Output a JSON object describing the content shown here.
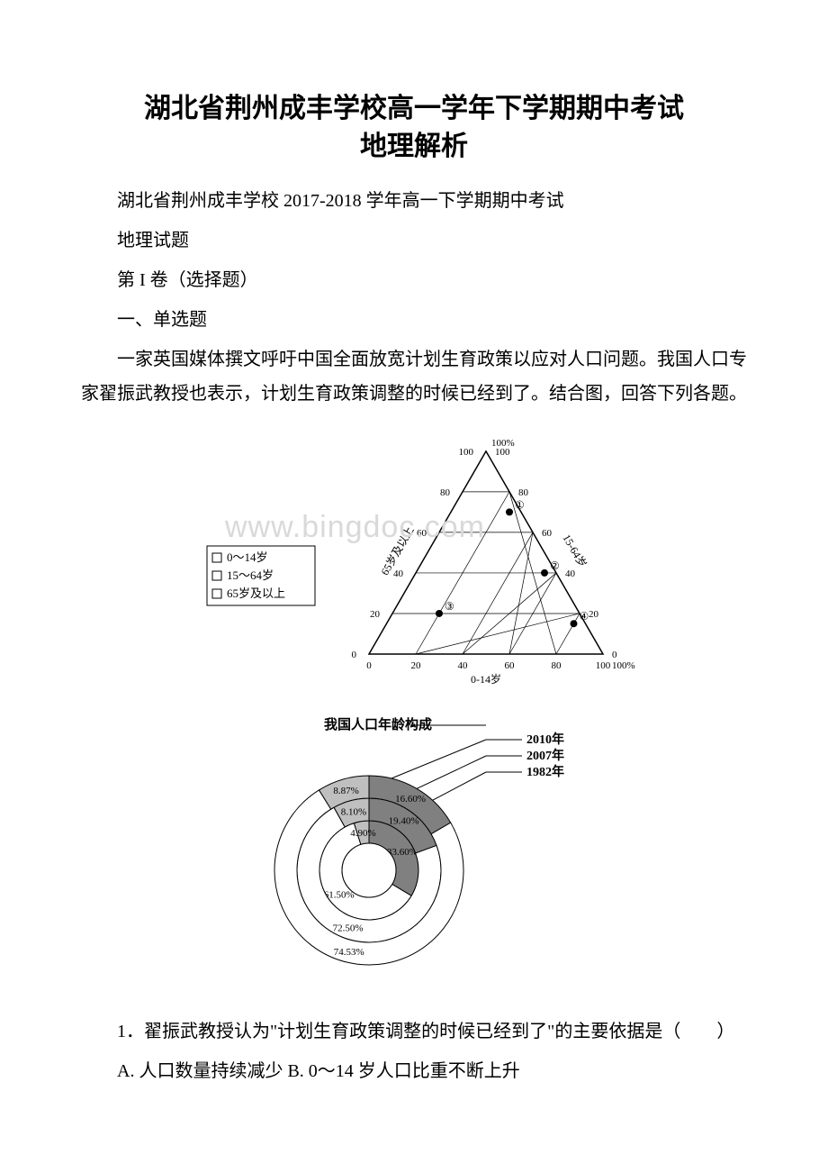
{
  "title_line1": "湖北省荆州成丰学校高一学年下学期期中考试",
  "title_line2": "地理解析",
  "p1": "湖北省荆州成丰学校 2017-2018 学年高一下学期期中考试",
  "p2": "地理试题",
  "p3": "第 I 卷（选择题）",
  "p4": "一、单选题",
  "p5": "一家英国媒体撰文呼吁中国全面放宽计划生育政策以应对人口问题。我国人口专家翟振武教授也表示，计划生育政策调整的时候已经到了。结合图，回答下列各题。",
  "q1": "1．翟振武教授认为\"计划生育政策调整的时候已经到了\"的主要依据是（　　）",
  "q1_opts": "A. 人口数量持续减少    B. 0～14 岁人口比重不断上升",
  "watermark": "www.bingdoc.com",
  "triangle": {
    "legend": [
      "0～14岁",
      "15～64岁",
      "65岁及以上"
    ],
    "axis_bottom": "0-14岁",
    "axis_left_rot": "65岁及以上",
    "axis_right_rot": "15-64岁",
    "ticks": [
      "0",
      "20",
      "40",
      "60",
      "80",
      "100"
    ],
    "ticks_pct_top": "100%",
    "ticks_pct_bottom_right": "100%",
    "points": [
      {
        "label": "①",
        "b014": 25,
        "b1564": 70,
        "b65": 5
      },
      {
        "label": "②",
        "b014": 55,
        "b1564": 40,
        "b65": 5
      },
      {
        "label": "③",
        "b014": 20,
        "b1564": 20,
        "b65": 60
      },
      {
        "label": "④",
        "b014": 80,
        "b1564": 15,
        "b65": 5
      }
    ],
    "stroke": "#000000",
    "bg": "#ffffff"
  },
  "pie": {
    "title": "我国人口年龄构成",
    "years": [
      "2010年",
      "2007年",
      "1982年"
    ],
    "rings": [
      {
        "year": "1982",
        "r_in": 30,
        "r_out": 55,
        "slices": [
          {
            "label": "33.60%",
            "v": 33.6,
            "fill": "#808080"
          },
          {
            "label": "61.50%",
            "v": 61.5,
            "fill": "#ffffff"
          },
          {
            "label": "4.90%",
            "v": 4.9,
            "fill": "#bfbfbf"
          }
        ]
      },
      {
        "year": "2007",
        "r_in": 55,
        "r_out": 80,
        "slices": [
          {
            "label": "19.40%",
            "v": 19.4,
            "fill": "#808080"
          },
          {
            "label": "72.50%",
            "v": 72.5,
            "fill": "#ffffff"
          },
          {
            "label": "8.10%",
            "v": 8.1,
            "fill": "#bfbfbf"
          }
        ]
      },
      {
        "year": "2010",
        "r_in": 80,
        "r_out": 105,
        "slices": [
          {
            "label": "16.60%",
            "v": 16.6,
            "fill": "#808080"
          },
          {
            "label": "74.53%",
            "v": 74.53,
            "fill": "#ffffff"
          },
          {
            "label": "8.87%",
            "v": 8.87,
            "fill": "#bfbfbf"
          }
        ]
      }
    ],
    "stroke": "#000000",
    "label_font": "12px"
  }
}
